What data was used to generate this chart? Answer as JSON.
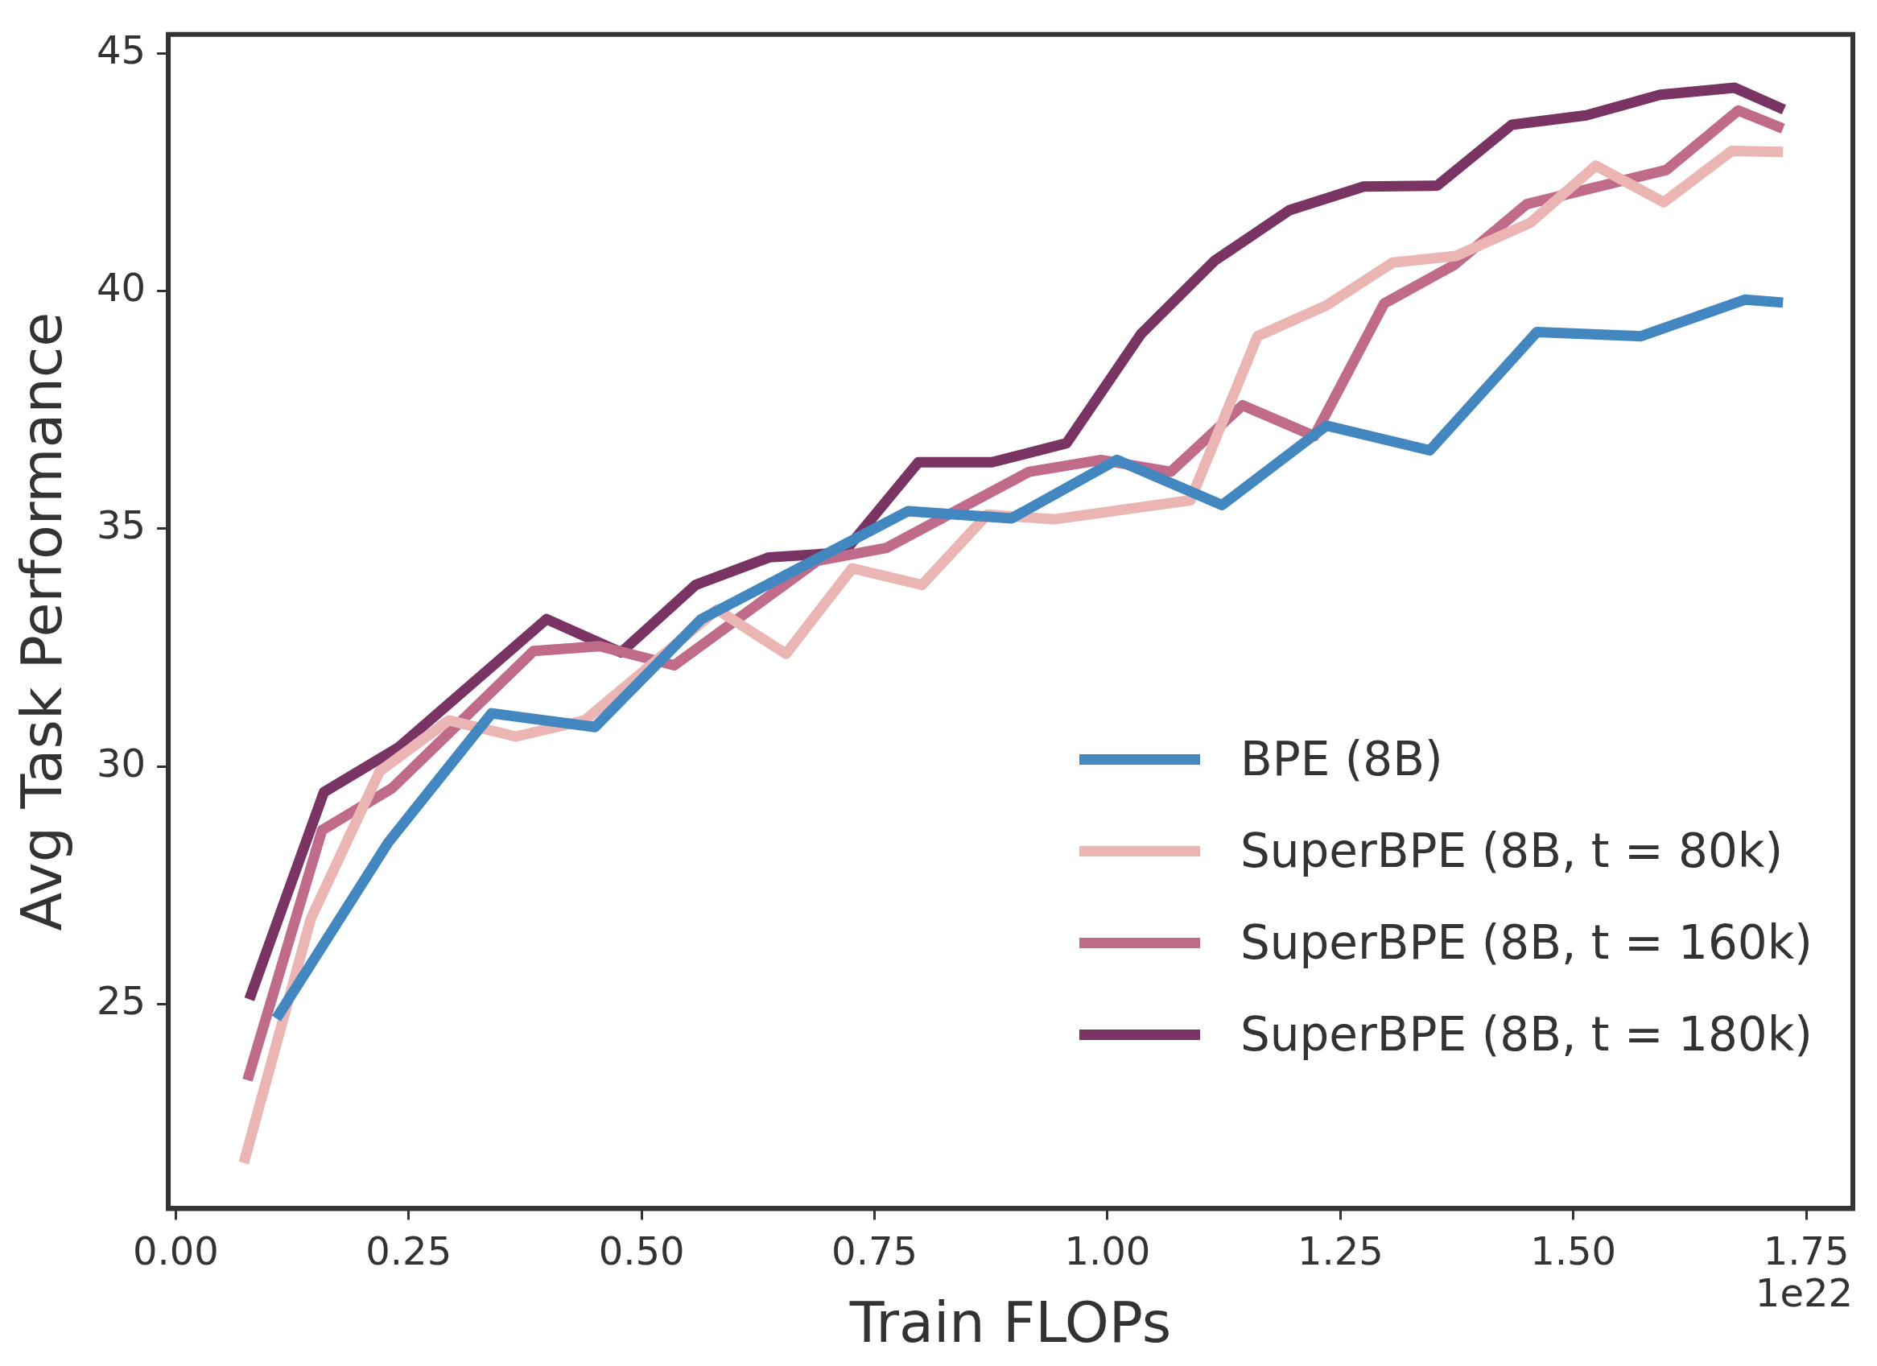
{
  "chart_data": {
    "type": "line",
    "xlabel": "Train FLOPs",
    "ylabel": "Avg Task Performance",
    "annotations": [
      "1e22"
    ],
    "xlim": [
      -0.008,
      1.8
    ],
    "xticks": [
      {
        "value": 0,
        "label": "0.00"
      },
      {
        "value": 0.25,
        "label": "0.25"
      },
      {
        "value": 0.5,
        "label": "0.50"
      },
      {
        "value": 0.75,
        "label": "0.75"
      },
      {
        "value": 1,
        "label": "1.00"
      },
      {
        "value": 1.25,
        "label": "1.25"
      },
      {
        "value": 1.5,
        "label": "1.50"
      },
      {
        "value": 1.75,
        "label": "1.75"
      }
    ],
    "ylim": [
      20.7,
      45.4
    ],
    "yticks": [
      25,
      30,
      35,
      40,
      45
    ],
    "grid": false,
    "legend": "bottom right",
    "marker": "none",
    "line_style": "solid",
    "series": [
      {
        "name": "BPE (8B)",
        "color": "#4287c0",
        "x": [
          0.108,
          0.228,
          0.339,
          0.45,
          0.564,
          0.786,
          0.897,
          1.01,
          1.123,
          1.235,
          1.346,
          1.461,
          1.572,
          1.684,
          1.725
        ],
        "values": [
          24.7,
          28.4,
          31.12,
          30.83,
          33.1,
          35.37,
          35.22,
          36.45,
          35.5,
          37.17,
          36.65,
          39.14,
          39.05,
          39.82,
          39.76
        ]
      },
      {
        "name": "SuperBPE (8B, t = 80k)",
        "color": "#eab5b3",
        "x": [
          0.073,
          0.145,
          0.219,
          0.293,
          0.365,
          0.439,
          0.581,
          0.655,
          0.726,
          0.801,
          0.871,
          0.943,
          1.089,
          1.161,
          1.235,
          1.306,
          1.374,
          1.454,
          1.524,
          1.597,
          1.67,
          1.725
        ],
        "values": [
          21.66,
          26.8,
          29.9,
          30.97,
          30.63,
          30.97,
          33.3,
          32.37,
          34.17,
          33.82,
          35.3,
          35.2,
          35.6,
          39.05,
          39.7,
          40.6,
          40.74,
          41.44,
          42.64,
          41.87,
          42.95,
          42.93
        ]
      },
      {
        "name": "SuperBPE (8B, t = 160k)",
        "color": "#c06b8a",
        "x": [
          0.077,
          0.157,
          0.232,
          0.384,
          0.455,
          0.535,
          0.689,
          0.763,
          0.916,
          0.993,
          1.068,
          1.145,
          1.222,
          1.297,
          1.372,
          1.45,
          1.6,
          1.677,
          1.725
        ],
        "values": [
          23.4,
          28.66,
          29.54,
          32.43,
          32.53,
          32.13,
          34.33,
          34.6,
          36.2,
          36.45,
          36.2,
          37.6,
          36.95,
          39.74,
          40.55,
          41.83,
          42.55,
          43.8,
          43.42
        ]
      },
      {
        "name": "SuperBPE (8B, t = 180k)",
        "color": "#7a3463",
        "x": [
          0.079,
          0.159,
          0.239,
          0.398,
          0.478,
          0.558,
          0.637,
          0.717,
          0.797,
          0.876,
          0.956,
          1.036,
          1.115,
          1.195,
          1.275,
          1.354,
          1.434,
          1.514,
          1.593,
          1.673,
          1.726
        ],
        "values": [
          25.1,
          29.46,
          30.4,
          33.1,
          32.4,
          33.82,
          34.4,
          34.5,
          36.4,
          36.4,
          36.8,
          39.1,
          40.64,
          41.7,
          42.2,
          42.22,
          43.5,
          43.7,
          44.13,
          44.28,
          43.82
        ]
      }
    ]
  }
}
